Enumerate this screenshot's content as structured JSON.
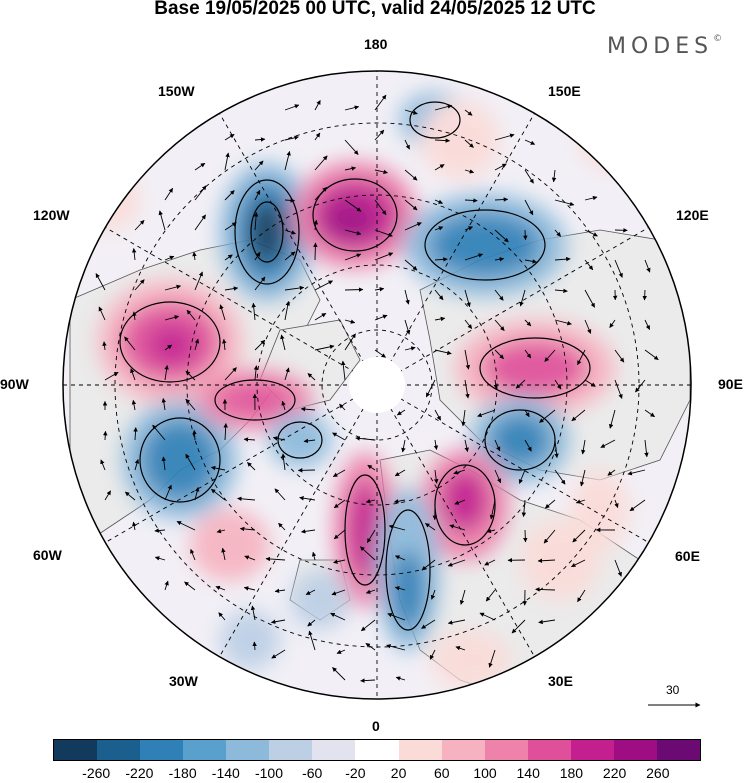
{
  "title": "Base 19/05/2025 00 UTC, valid 24/05/2025 12 UTC",
  "brand": "MODES",
  "brand_mark": "©",
  "longitude_labels": {
    "top": "180",
    "top_right": "150E",
    "upper_right": "120E",
    "right": "90E",
    "lower_right": "60E",
    "bottom_right": "30E",
    "bottom": "0",
    "bottom_left": "30W",
    "lower_left": "60W",
    "left": "90W",
    "upper_left": "120W",
    "top_left": "150W"
  },
  "reference_vector": {
    "label": "30"
  },
  "colorbar": {
    "colors": [
      "#123a5c",
      "#1b5f8f",
      "#2f80b7",
      "#5aa0cc",
      "#8dbadb",
      "#bccfe5",
      "#e3e3f0",
      "#ffffff",
      "#fadbd8",
      "#f6b2c0",
      "#ee82aa",
      "#e04f9a",
      "#c41f8e",
      "#9e0e82",
      "#6a0a72"
    ],
    "ticks": [
      "-260",
      "-220",
      "-180",
      "-140",
      "-100",
      "-60",
      "-20",
      "20",
      "60",
      "100",
      "140",
      "180",
      "220",
      "260"
    ]
  },
  "colors": {
    "land": "#ebebeb",
    "land_outline": "#555555",
    "grid": "#000000"
  }
}
